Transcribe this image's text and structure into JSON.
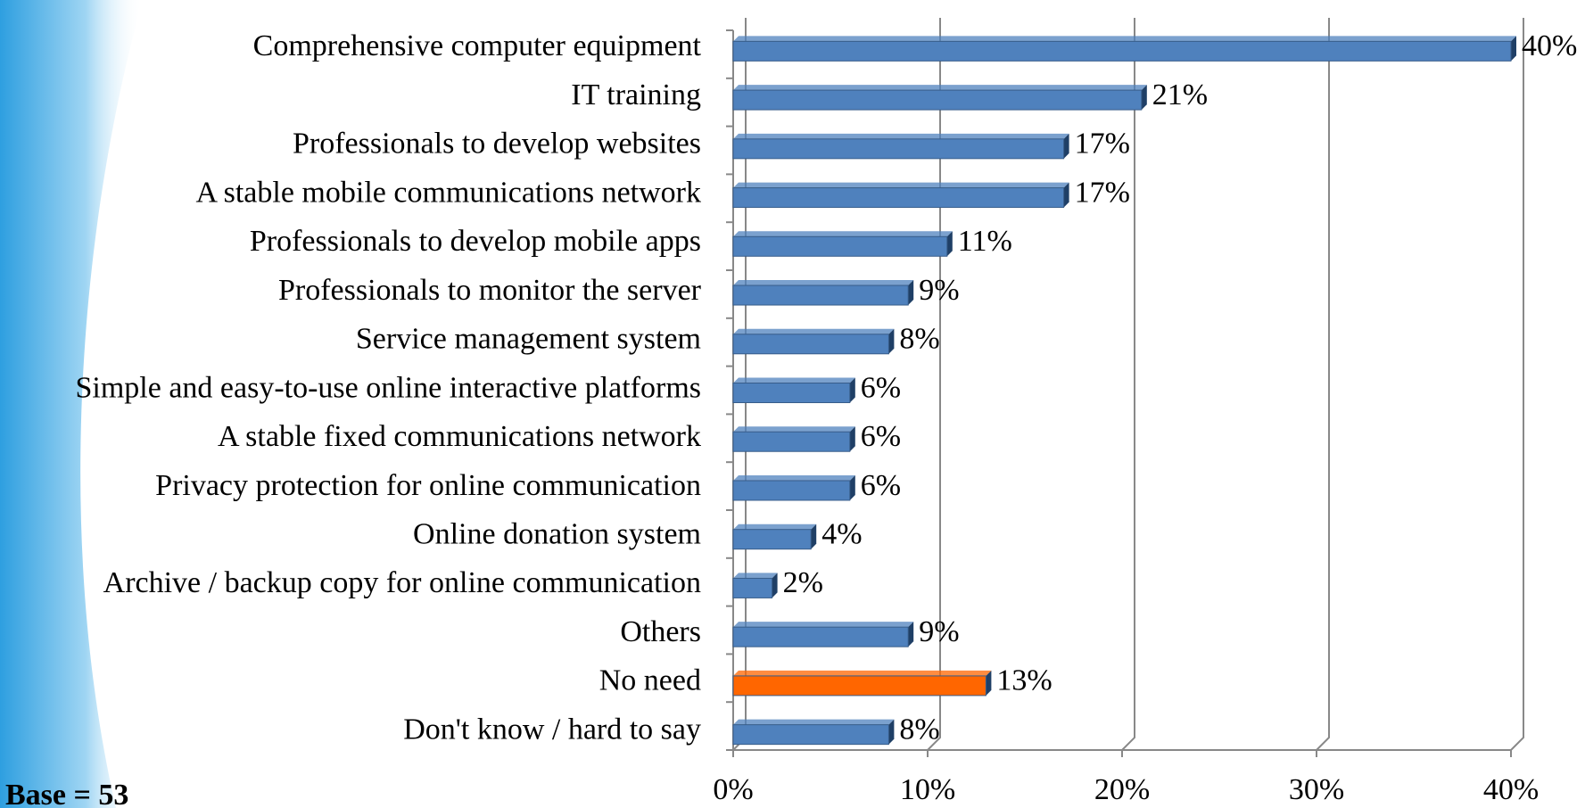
{
  "chart_data": {
    "type": "bar",
    "orientation": "horizontal",
    "categories": [
      "Comprehensive computer equipment",
      "IT training",
      "Professionals to develop websites",
      "A stable mobile communications network",
      "Professionals to develop mobile apps",
      "Professionals to monitor the server",
      "Service management system",
      "Simple and easy-to-use online interactive platforms",
      "A stable fixed communications network",
      "Privacy protection for online communication",
      "Online donation system",
      "Archive / backup copy for online communication",
      "Others",
      "No need",
      "Don't know / hard to say"
    ],
    "values": [
      40,
      21,
      17,
      17,
      11,
      9,
      8,
      6,
      6,
      6,
      4,
      2,
      9,
      13,
      8
    ],
    "value_labels": [
      "40%",
      "21%",
      "17%",
      "17%",
      "11%",
      "9%",
      "8%",
      "6%",
      "6%",
      "6%",
      "4%",
      "2%",
      "9%",
      "13%",
      "8%"
    ],
    "colors": [
      "#4f81bd",
      "#4f81bd",
      "#4f81bd",
      "#4f81bd",
      "#4f81bd",
      "#4f81bd",
      "#4f81bd",
      "#4f81bd",
      "#4f81bd",
      "#4f81bd",
      "#4f81bd",
      "#4f81bd",
      "#4f81bd",
      "#ff6600",
      "#4f81bd"
    ],
    "xlim": [
      0,
      40
    ],
    "xticks": [
      {
        "value": 0,
        "label": "0%"
      },
      {
        "value": 10,
        "label": "10%"
      },
      {
        "value": 20,
        "label": "20%"
      },
      {
        "value": 30,
        "label": "30%"
      },
      {
        "value": 40,
        "label": "40%"
      }
    ],
    "grid": true,
    "annotation": "Base = 53"
  }
}
